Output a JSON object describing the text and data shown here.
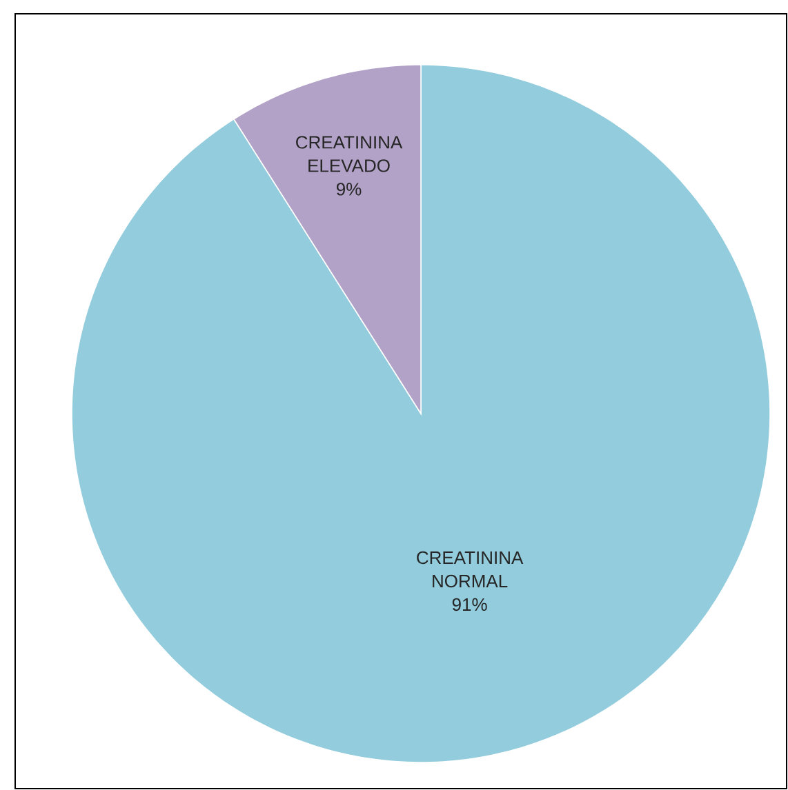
{
  "chart_data": {
    "type": "pie",
    "categories": [
      "CREATININA NORMAL",
      "CREATININA ELEVADO"
    ],
    "values": [
      91,
      9
    ],
    "colors": [
      "#93cddd",
      "#b3a2c7"
    ],
    "value_labels": [
      "91%",
      "9%"
    ],
    "legend": false
  }
}
